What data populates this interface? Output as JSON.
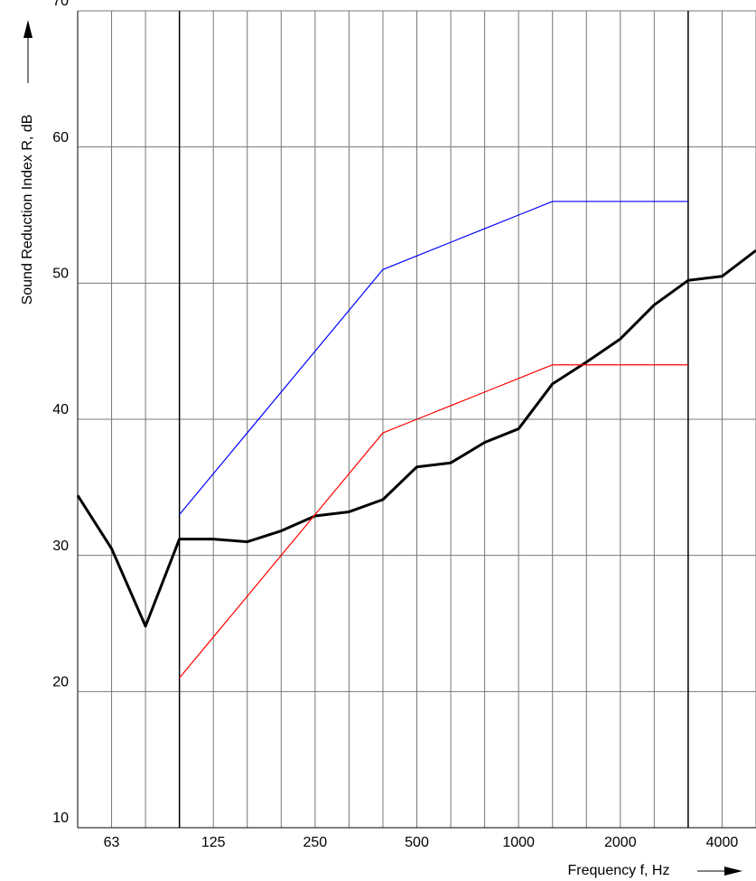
{
  "chart_data": {
    "type": "line",
    "xlabel": "Frequency f, Hz",
    "ylabel": "Sound Reduction Index R, dB",
    "categories": [
      null,
      "63",
      null,
      null,
      "125",
      null,
      null,
      "250",
      null,
      null,
      "500",
      null,
      null,
      "1000",
      null,
      null,
      "2000",
      null,
      null,
      "4000",
      null
    ],
    "series": [
      {
        "color": "#000000",
        "values": [
          34.4,
          30.5,
          24.8,
          31.2,
          31.2,
          31.0,
          31.8,
          32.9,
          33.2,
          34.1,
          36.5,
          36.8,
          38.3,
          39.3,
          42.6,
          44.2,
          45.9,
          48.4,
          50.2,
          50.5,
          52.4
        ]
      },
      {
        "color": "#0000ff",
        "values": [
          null,
          null,
          null,
          33,
          36,
          39,
          42,
          45,
          48,
          51,
          52,
          53,
          54,
          55,
          56,
          56,
          56,
          56,
          56,
          null,
          null
        ]
      },
      {
        "color": "#ff0000",
        "values": [
          null,
          null,
          null,
          21,
          24,
          27,
          30,
          33,
          36,
          39,
          40,
          41,
          42,
          43,
          44,
          44,
          44,
          44,
          44,
          null,
          null
        ]
      }
    ],
    "ylim": [
      10,
      70
    ],
    "yticks": [
      10,
      20,
      30,
      40,
      50,
      60,
      70
    ],
    "grid": true
  }
}
